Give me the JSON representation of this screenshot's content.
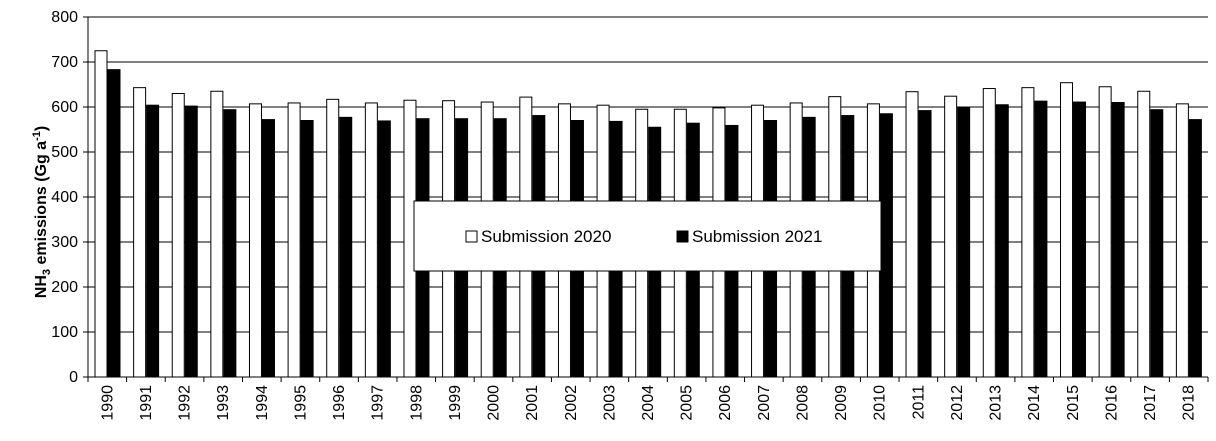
{
  "chart_data": {
    "type": "bar",
    "ylabel_main": "NH",
    "ylabel_sub": "3",
    "ylabel_rest": " emissions (Gg a",
    "ylabel_sup": "-1",
    "ylabel_end": ")",
    "ylim": [
      0,
      800
    ],
    "yticks": [
      0,
      100,
      200,
      300,
      400,
      500,
      600,
      700,
      800
    ],
    "grid": true,
    "legend_position": "center",
    "categories": [
      "1990",
      "1991",
      "1992",
      "1993",
      "1994",
      "1995",
      "1996",
      "1997",
      "1998",
      "1999",
      "2000",
      "2001",
      "2002",
      "2003",
      "2004",
      "2005",
      "2006",
      "2007",
      "2008",
      "2009",
      "2010",
      "2011",
      "2012",
      "2013",
      "2014",
      "2015",
      "2016",
      "2017",
      "2018"
    ],
    "series": [
      {
        "name": "Submission 2020",
        "color": "#ffffff",
        "values": [
          725,
          643,
          630,
          635,
          607,
          609,
          617,
          609,
          615,
          614,
          611,
          622,
          607,
          604,
          595,
          595,
          598,
          604,
          609,
          623,
          607,
          634,
          624,
          641,
          643,
          654,
          645,
          635,
          607
        ]
      },
      {
        "name": "Submission 2021",
        "color": "#000000",
        "values": [
          683,
          604,
          602,
          594,
          572,
          570,
          577,
          569,
          574,
          574,
          574,
          581,
          570,
          568,
          555,
          564,
          559,
          570,
          577,
          581,
          585,
          592,
          600,
          605,
          613,
          611,
          610,
          594,
          572
        ]
      }
    ]
  }
}
